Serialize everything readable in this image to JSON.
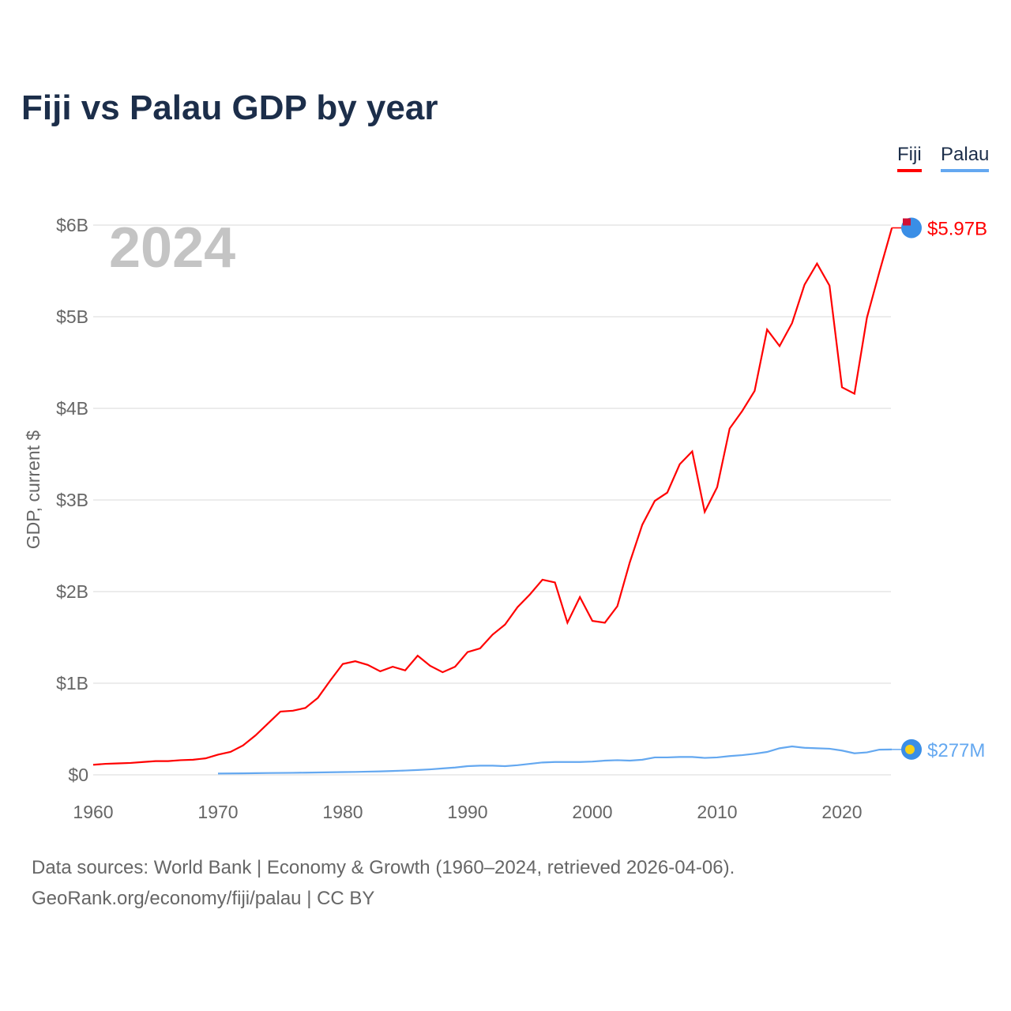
{
  "title": "Fiji vs Palau GDP by year",
  "year_label": "2024",
  "footer": {
    "line1": "Data sources: World Bank | Economy & Growth (1960–2024, retrieved 2026-04-06).",
    "line2": "GeoRank.org/economy/fiji/palau | CC BY"
  },
  "chart_data": {
    "type": "line",
    "title": "Fiji vs Palau GDP by year",
    "xlabel": "",
    "ylabel": "GDP, current $",
    "xlim": [
      1960,
      2024
    ],
    "ylim": [
      0,
      6
    ],
    "x_ticks": [
      1960,
      1970,
      1980,
      1990,
      2000,
      2010,
      2020
    ],
    "y_ticks": [
      {
        "v": 0,
        "label": "$0"
      },
      {
        "v": 1,
        "label": "$1B"
      },
      {
        "v": 2,
        "label": "$2B"
      },
      {
        "v": 3,
        "label": "$3B"
      },
      {
        "v": 4,
        "label": "$4B"
      },
      {
        "v": 5,
        "label": "$5B"
      },
      {
        "v": 6,
        "label": "$6B"
      }
    ],
    "grid": true,
    "legend": "top-right",
    "series": [
      {
        "name": "Fiji",
        "color": "#ff0000",
        "start": 1960,
        "end_label": "$5.97B",
        "values": [
          0.11,
          0.12,
          0.125,
          0.13,
          0.14,
          0.15,
          0.15,
          0.16,
          0.165,
          0.18,
          0.22,
          0.25,
          0.32,
          0.43,
          0.56,
          0.69,
          0.7,
          0.73,
          0.84,
          1.03,
          1.21,
          1.24,
          1.2,
          1.13,
          1.18,
          1.14,
          1.3,
          1.19,
          1.12,
          1.18,
          1.34,
          1.38,
          1.53,
          1.64,
          1.83,
          1.97,
          2.13,
          2.1,
          1.66,
          1.94,
          1.68,
          1.66,
          1.84,
          2.32,
          2.73,
          2.99,
          3.08,
          3.39,
          3.53,
          2.87,
          3.14,
          3.78,
          3.97,
          4.19,
          4.86,
          4.68,
          4.93,
          5.35,
          5.58,
          5.34,
          4.23,
          4.16,
          4.99,
          5.49,
          5.97
        ]
      },
      {
        "name": "Palau",
        "color": "#64a8f0",
        "start": 1970,
        "end_label": "$277M",
        "values": [
          0.014,
          0.015,
          0.016,
          0.018,
          0.02,
          0.021,
          0.022,
          0.024,
          0.026,
          0.028,
          0.03,
          0.032,
          0.035,
          0.038,
          0.042,
          0.047,
          0.053,
          0.06,
          0.07,
          0.08,
          0.095,
          0.1,
          0.1,
          0.095,
          0.105,
          0.12,
          0.135,
          0.14,
          0.14,
          0.14,
          0.145,
          0.155,
          0.16,
          0.155,
          0.165,
          0.19,
          0.19,
          0.195,
          0.195,
          0.185,
          0.19,
          0.205,
          0.215,
          0.23,
          0.25,
          0.29,
          0.31,
          0.295,
          0.29,
          0.285,
          0.265,
          0.235,
          0.245,
          0.275,
          0.277
        ]
      }
    ]
  }
}
